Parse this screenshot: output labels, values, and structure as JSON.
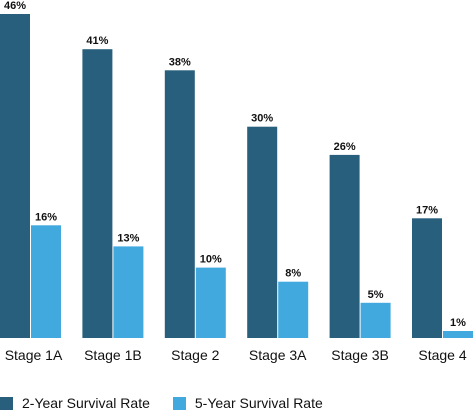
{
  "chart_data": {
    "type": "bar",
    "categories": [
      "Stage 1A",
      "Stage 1B",
      "Stage 2",
      "Stage 3A",
      "Stage 3B",
      "Stage 4"
    ],
    "series": [
      {
        "name": "2-Year Survival Rate",
        "values": [
          46,
          41,
          38,
          30,
          26,
          17
        ],
        "labels": [
          "46%",
          "41%",
          "38%",
          "30%",
          "26%",
          "17%"
        ],
        "color": "#275f7c"
      },
      {
        "name": "5-Year Survival Rate",
        "values": [
          16,
          13,
          10,
          8,
          5,
          1
        ],
        "labels": [
          "16%",
          "13%",
          "10%",
          "8%",
          "5%",
          "1%"
        ],
        "color": "#42a9df"
      }
    ],
    "ylim": [
      0,
      48
    ],
    "grid": false,
    "legend_position": "bottom-left"
  }
}
